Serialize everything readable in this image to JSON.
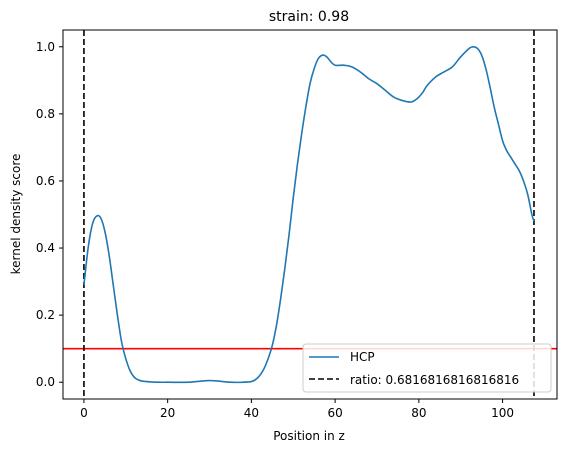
{
  "chart_data": {
    "type": "line",
    "title": "strain: 0.98",
    "xlabel": "Position in z",
    "ylabel": "kernel density score",
    "xlim": [
      -5,
      113
    ],
    "ylim": [
      -0.05,
      1.05
    ],
    "xticks": [
      0,
      20,
      40,
      60,
      80,
      100
    ],
    "yticks": [
      0.0,
      0.2,
      0.4,
      0.6,
      0.8,
      1.0
    ],
    "xtick_labels": [
      "0",
      "20",
      "40",
      "60",
      "80",
      "100"
    ],
    "ytick_labels": [
      "0.0",
      "0.2",
      "0.4",
      "0.6",
      "0.8",
      "1.0"
    ],
    "grid": false,
    "legend_position": "lower-right",
    "series": [
      {
        "name": "HCP",
        "color": "#1f77b4",
        "x": [
          0,
          1,
          2,
          3,
          4,
          5,
          6,
          7,
          8,
          9,
          10,
          11,
          12,
          13,
          14,
          16,
          18,
          20,
          25,
          30,
          35,
          38,
          40,
          41,
          42,
          43,
          44,
          45,
          46,
          47,
          48,
          49,
          50,
          51,
          52,
          53,
          54,
          55,
          56,
          57,
          58,
          59,
          60,
          62,
          64,
          66,
          68,
          70,
          72,
          74,
          76,
          78,
          79,
          80,
          81,
          82,
          84,
          86,
          88,
          90,
          92,
          93,
          94,
          95,
          96,
          97,
          98,
          99,
          100,
          101,
          102,
          103,
          104,
          105,
          106,
          107,
          107.5
        ],
        "y": [
          0.29,
          0.4,
          0.47,
          0.495,
          0.49,
          0.45,
          0.38,
          0.29,
          0.2,
          0.12,
          0.07,
          0.035,
          0.015,
          0.007,
          0.003,
          0.001,
          0.0,
          0.0,
          0.0,
          0.005,
          0.0,
          0.0,
          0.002,
          0.008,
          0.02,
          0.04,
          0.07,
          0.11,
          0.17,
          0.25,
          0.34,
          0.44,
          0.55,
          0.65,
          0.74,
          0.82,
          0.89,
          0.935,
          0.965,
          0.975,
          0.97,
          0.955,
          0.945,
          0.945,
          0.94,
          0.925,
          0.905,
          0.89,
          0.87,
          0.85,
          0.84,
          0.835,
          0.84,
          0.85,
          0.865,
          0.885,
          0.91,
          0.925,
          0.94,
          0.97,
          0.995,
          1.0,
          0.995,
          0.975,
          0.935,
          0.88,
          0.82,
          0.77,
          0.72,
          0.69,
          0.67,
          0.65,
          0.63,
          0.6,
          0.56,
          0.5,
          0.48
        ]
      },
      {
        "name": "ratio: 0.6816816816816816",
        "color": "#000000",
        "style": "dashed",
        "x_positions": [
          0,
          107.5
        ]
      }
    ],
    "reference_line": {
      "y": 0.1,
      "color": "#ff0000"
    }
  }
}
